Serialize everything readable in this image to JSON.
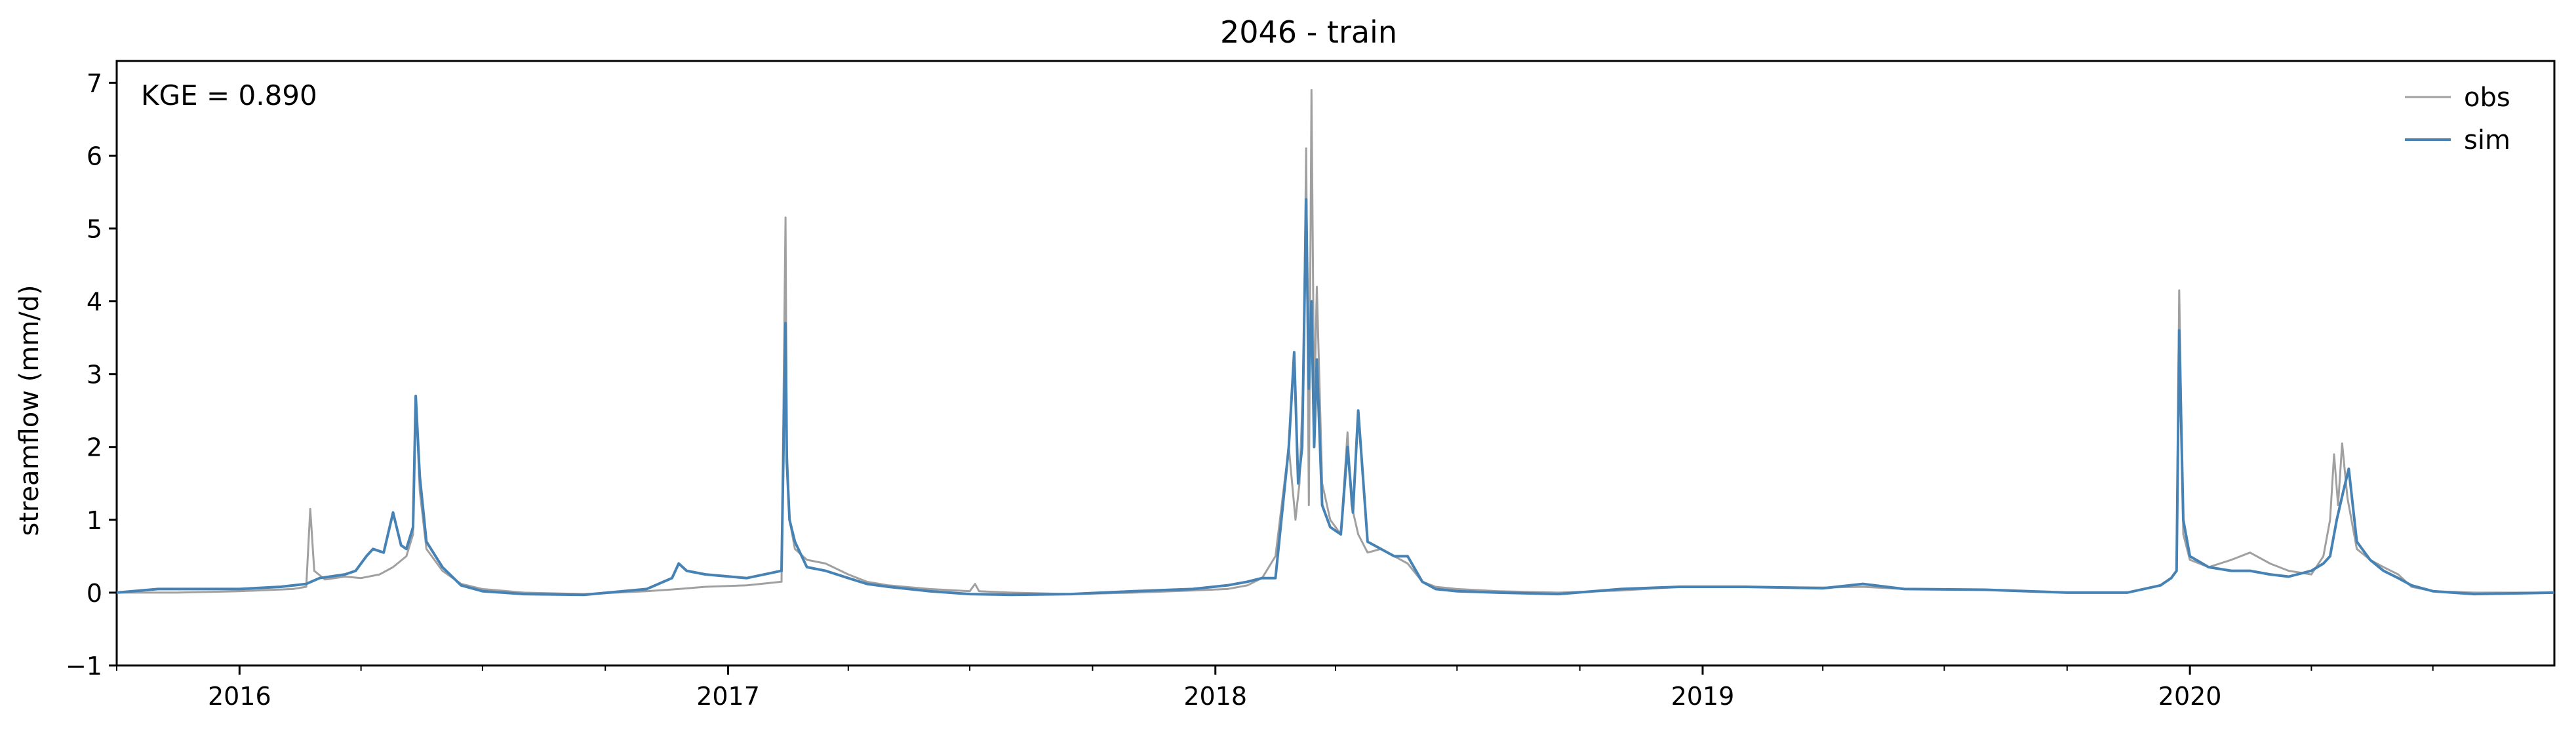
{
  "chart_data": {
    "type": "line",
    "title": "2046 - train",
    "xlabel": "",
    "ylabel": "streamflow (mm/d)",
    "annotation": "KGE = 0.890",
    "xlim": [
      "2015-10-01",
      "2020-09-30"
    ],
    "ylim": [
      -1,
      7.3
    ],
    "yticks": [
      -1,
      0,
      1,
      2,
      3,
      4,
      5,
      6,
      7
    ],
    "ytick_labels": [
      "−1",
      "0",
      "1",
      "2",
      "3",
      "4",
      "5",
      "6",
      "7"
    ],
    "xticks": [
      "2016-01-01",
      "2017-01-01",
      "2018-01-01",
      "2019-01-01",
      "2020-01-01"
    ],
    "xtick_labels": [
      "2016",
      "2017",
      "2018",
      "2019",
      "2020"
    ],
    "grid": false,
    "legend": {
      "position": "top-right",
      "entries": [
        "obs",
        "sim"
      ]
    },
    "colors": {
      "obs": "#a0a0a0",
      "sim": "#4682b4"
    },
    "series": [
      {
        "name": "obs",
        "x": [
          "2015-10-01",
          "2015-11-15",
          "2016-01-01",
          "2016-02-10",
          "2016-02-20",
          "2016-02-23",
          "2016-02-26",
          "2016-03-05",
          "2016-03-20",
          "2016-04-01",
          "2016-04-15",
          "2016-04-25",
          "2016-05-05",
          "2016-05-10",
          "2016-05-12",
          "2016-05-15",
          "2016-05-20",
          "2016-06-01",
          "2016-06-15",
          "2016-07-01",
          "2016-08-01",
          "2016-09-15",
          "2016-11-01",
          "2016-11-25",
          "2016-12-15",
          "2017-01-15",
          "2017-02-10",
          "2017-02-13",
          "2017-02-14",
          "2017-02-16",
          "2017-02-20",
          "2017-03-01",
          "2017-03-15",
          "2017-04-01",
          "2017-04-15",
          "2017-05-01",
          "2017-06-01",
          "2017-07-01",
          "2017-07-05",
          "2017-07-08",
          "2017-08-01",
          "2017-09-15",
          "2017-11-01",
          "2017-12-15",
          "2018-01-10",
          "2018-01-25",
          "2018-02-05",
          "2018-02-15",
          "2018-02-25",
          "2018-03-02",
          "2018-03-05",
          "2018-03-08",
          "2018-03-10",
          "2018-03-12",
          "2018-03-14",
          "2018-03-16",
          "2018-03-18",
          "2018-03-22",
          "2018-03-28",
          "2018-04-05",
          "2018-04-10",
          "2018-04-13",
          "2018-04-18",
          "2018-04-25",
          "2018-05-05",
          "2018-05-15",
          "2018-05-25",
          "2018-06-05",
          "2018-06-15",
          "2018-07-01",
          "2018-08-01",
          "2018-09-15",
          "2018-11-01",
          "2018-12-15",
          "2019-02-01",
          "2019-04-01",
          "2019-05-01",
          "2019-06-01",
          "2019-08-01",
          "2019-10-01",
          "2019-11-15",
          "2019-12-10",
          "2019-12-18",
          "2019-12-22",
          "2019-12-24",
          "2019-12-27",
          "2020-01-01",
          "2020-01-15",
          "2020-02-01",
          "2020-02-15",
          "2020-03-01",
          "2020-03-15",
          "2020-04-01",
          "2020-04-10",
          "2020-04-15",
          "2020-04-18",
          "2020-04-21",
          "2020-04-24",
          "2020-04-28",
          "2020-05-05",
          "2020-05-15",
          "2020-05-25",
          "2020-06-05",
          "2020-06-15",
          "2020-07-01",
          "2020-08-01",
          "2020-09-30"
        ],
        "y": [
          0.0,
          0.0,
          0.02,
          0.05,
          0.08,
          1.15,
          0.3,
          0.18,
          0.22,
          0.2,
          0.25,
          0.35,
          0.5,
          0.8,
          2.7,
          1.4,
          0.6,
          0.3,
          0.12,
          0.05,
          0.0,
          -0.02,
          0.02,
          0.05,
          0.08,
          0.1,
          0.15,
          5.15,
          2.0,
          1.0,
          0.6,
          0.45,
          0.4,
          0.25,
          0.15,
          0.1,
          0.05,
          0.02,
          0.12,
          0.02,
          0.0,
          -0.02,
          0.0,
          0.03,
          0.05,
          0.1,
          0.2,
          0.5,
          2.0,
          1.0,
          1.5,
          3.0,
          6.1,
          1.2,
          6.9,
          2.5,
          4.2,
          1.5,
          1.0,
          0.8,
          2.2,
          1.2,
          0.8,
          0.55,
          0.6,
          0.5,
          0.4,
          0.15,
          0.08,
          0.05,
          0.02,
          0.0,
          0.03,
          0.08,
          0.08,
          0.07,
          0.08,
          0.05,
          0.04,
          0.0,
          0.0,
          0.1,
          0.2,
          0.3,
          4.15,
          0.8,
          0.45,
          0.35,
          0.45,
          0.55,
          0.4,
          0.3,
          0.25,
          0.5,
          1.0,
          1.9,
          1.2,
          2.05,
          1.3,
          0.6,
          0.45,
          0.35,
          0.25,
          0.08,
          0.02,
          0.0,
          0.0
        ]
      },
      {
        "name": "sim",
        "x": [
          "2015-10-01",
          "2015-11-01",
          "2016-01-01",
          "2016-02-01",
          "2016-02-20",
          "2016-03-01",
          "2016-03-20",
          "2016-03-28",
          "2016-04-05",
          "2016-04-10",
          "2016-04-18",
          "2016-04-25",
          "2016-05-01",
          "2016-05-05",
          "2016-05-10",
          "2016-05-12",
          "2016-05-15",
          "2016-05-20",
          "2016-06-01",
          "2016-06-15",
          "2016-07-01",
          "2016-08-01",
          "2016-09-15",
          "2016-11-01",
          "2016-11-20",
          "2016-11-25",
          "2016-12-01",
          "2016-12-15",
          "2017-01-15",
          "2017-02-10",
          "2017-02-13",
          "2017-02-14",
          "2017-02-16",
          "2017-02-20",
          "2017-03-01",
          "2017-03-15",
          "2017-04-01",
          "2017-04-15",
          "2017-05-01",
          "2017-06-01",
          "2017-07-01",
          "2017-08-01",
          "2017-09-15",
          "2017-11-01",
          "2017-12-15",
          "2018-01-10",
          "2018-01-25",
          "2018-02-05",
          "2018-02-15",
          "2018-02-25",
          "2018-03-01",
          "2018-03-04",
          "2018-03-07",
          "2018-03-10",
          "2018-03-12",
          "2018-03-14",
          "2018-03-16",
          "2018-03-18",
          "2018-03-22",
          "2018-03-28",
          "2018-04-05",
          "2018-04-10",
          "2018-04-14",
          "2018-04-18",
          "2018-04-25",
          "2018-05-05",
          "2018-05-15",
          "2018-05-25",
          "2018-06-05",
          "2018-06-15",
          "2018-07-01",
          "2018-08-01",
          "2018-09-15",
          "2018-11-01",
          "2018-12-15",
          "2019-02-01",
          "2019-04-01",
          "2019-05-01",
          "2019-06-01",
          "2019-08-01",
          "2019-10-01",
          "2019-11-15",
          "2019-12-10",
          "2019-12-18",
          "2019-12-22",
          "2019-12-24",
          "2019-12-27",
          "2020-01-01",
          "2020-01-15",
          "2020-02-01",
          "2020-02-15",
          "2020-03-01",
          "2020-03-15",
          "2020-04-01",
          "2020-04-10",
          "2020-04-15",
          "2020-04-20",
          "2020-04-25",
          "2020-04-29",
          "2020-05-05",
          "2020-05-15",
          "2020-05-25",
          "2020-06-05",
          "2020-06-15",
          "2020-07-01",
          "2020-08-01",
          "2020-09-30"
        ],
        "y": [
          0.0,
          0.05,
          0.05,
          0.08,
          0.12,
          0.2,
          0.25,
          0.3,
          0.5,
          0.6,
          0.55,
          1.1,
          0.65,
          0.6,
          0.9,
          2.7,
          1.6,
          0.7,
          0.35,
          0.1,
          0.02,
          -0.02,
          -0.03,
          0.05,
          0.2,
          0.4,
          0.3,
          0.25,
          0.2,
          0.3,
          3.7,
          1.8,
          1.0,
          0.7,
          0.35,
          0.3,
          0.2,
          0.12,
          0.08,
          0.02,
          -0.02,
          -0.03,
          -0.02,
          0.02,
          0.05,
          0.1,
          0.15,
          0.2,
          0.2,
          2.0,
          3.3,
          1.5,
          2.0,
          5.4,
          2.8,
          4.0,
          2.0,
          3.2,
          1.2,
          0.9,
          0.8,
          2.0,
          1.1,
          2.5,
          0.7,
          0.6,
          0.5,
          0.5,
          0.15,
          0.05,
          0.02,
          0.0,
          -0.02,
          0.05,
          0.08,
          0.08,
          0.06,
          0.12,
          0.05,
          0.04,
          0.0,
          0.0,
          0.1,
          0.2,
          0.3,
          3.6,
          1.0,
          0.5,
          0.35,
          0.3,
          0.3,
          0.25,
          0.22,
          0.3,
          0.4,
          0.5,
          1.0,
          1.4,
          1.7,
          0.7,
          0.45,
          0.3,
          0.2,
          0.1,
          0.02,
          -0.02,
          0.0
        ]
      }
    ]
  }
}
